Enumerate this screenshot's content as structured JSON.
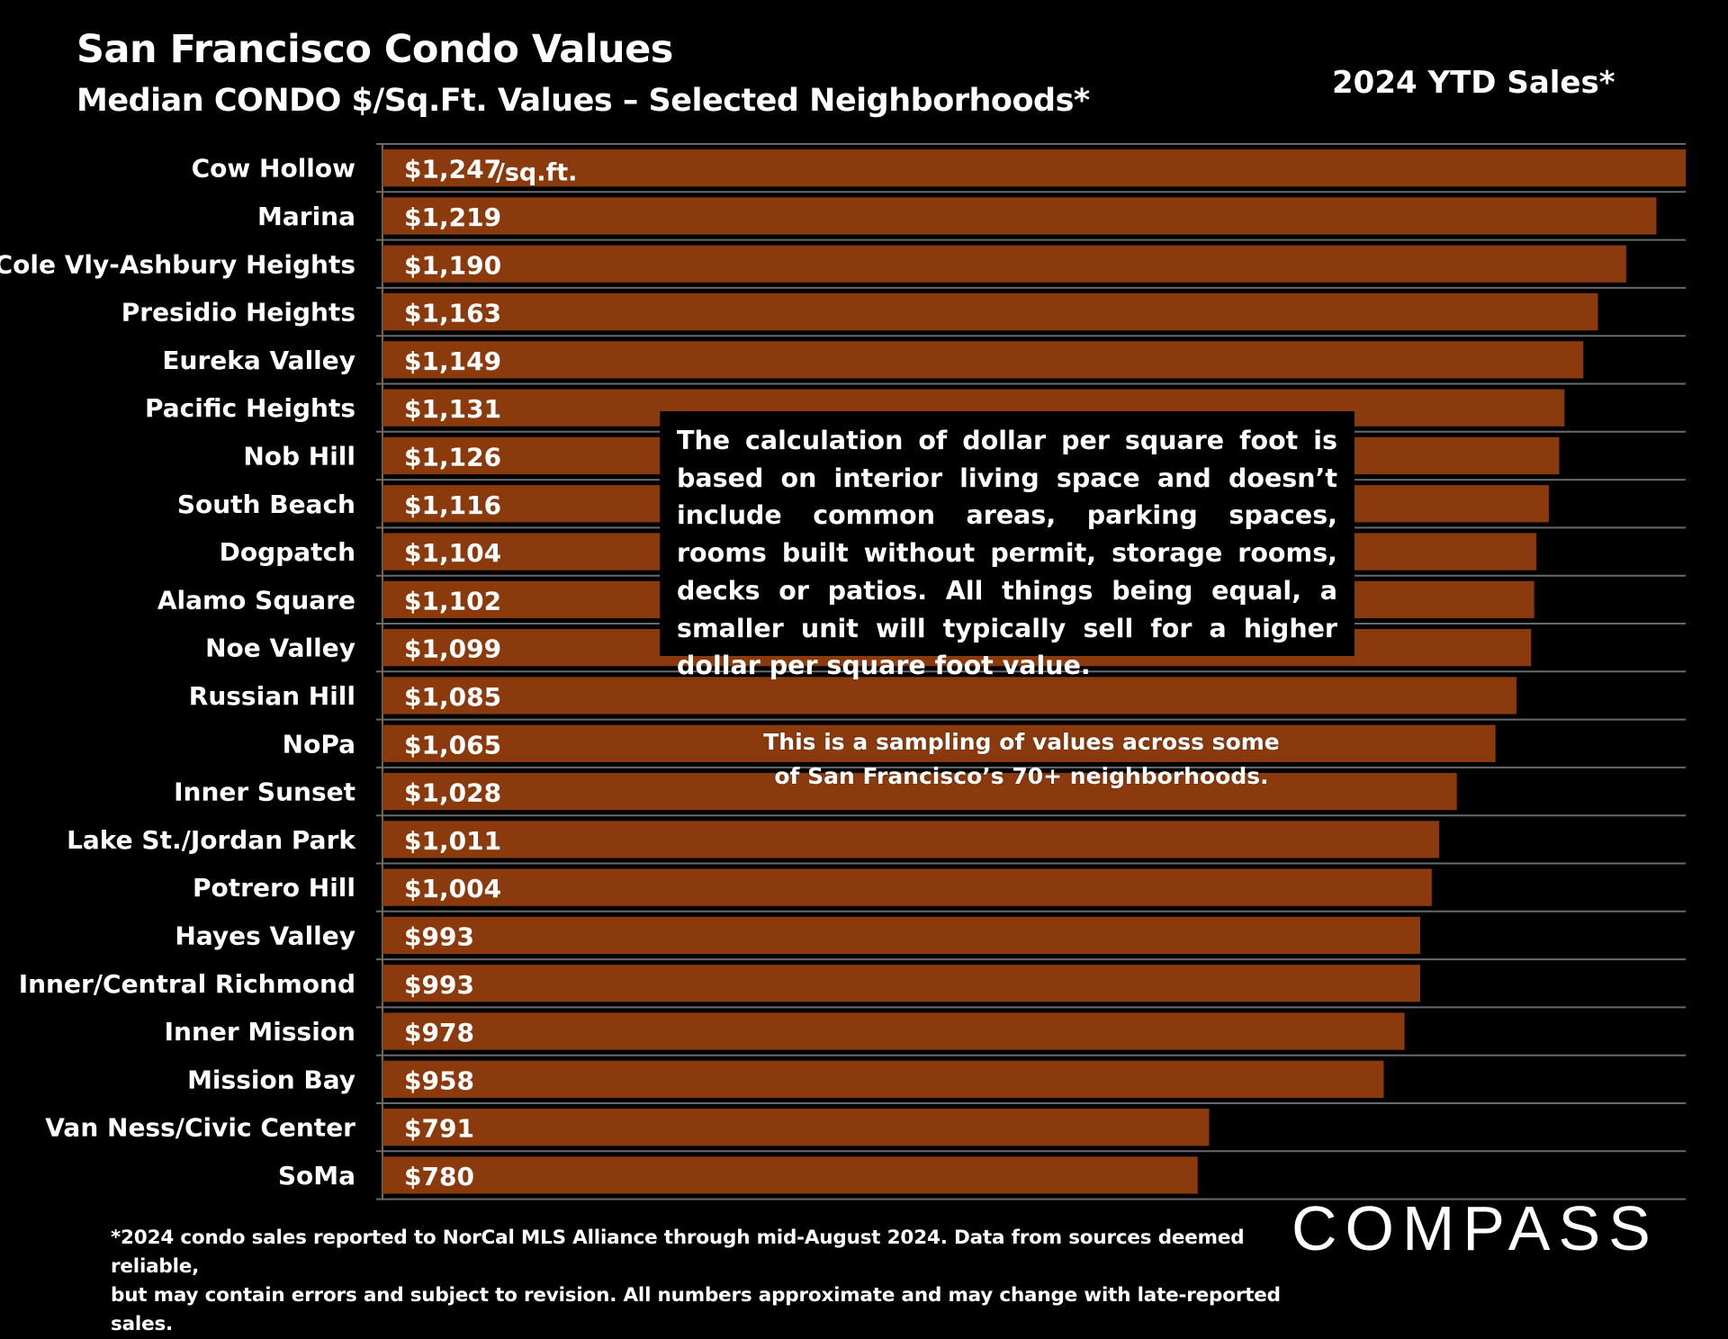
{
  "header": {
    "title": "San Francisco Condo Values",
    "subtitle": "Median CONDO $/Sq.Ft. Values – Selected Neighborhoods*",
    "period_label": "2024 YTD Sales*"
  },
  "colors": {
    "bar": "#8B3A0E",
    "gridline": "#6a6a6a",
    "background": "#000000",
    "text": "#ffffff"
  },
  "chart_data": {
    "type": "bar",
    "orientation": "horizontal",
    "title": "Median CONDO $/Sq.Ft. Values – Selected Neighborhoods*",
    "xlabel": "",
    "ylabel": "",
    "unit_suffix": "/sq.ft.",
    "xlim": [
      0,
      1247
    ],
    "categories": [
      "Cow Hollow",
      "Marina",
      "Cole Vly-Ashbury Heights",
      "Presidio Heights",
      "Eureka Valley",
      "Pacific Heights",
      "Nob Hill",
      "South Beach",
      "Dogpatch",
      "Alamo Square",
      "Noe Valley",
      "Russian Hill",
      "NoPa",
      "Inner Sunset",
      "Lake St./Jordan Park",
      "Potrero Hill",
      "Hayes Valley",
      "Inner/Central Richmond",
      "Inner Mission",
      "Mission Bay",
      "Van Ness/Civic Center",
      "SoMa"
    ],
    "values": [
      1247,
      1219,
      1190,
      1163,
      1149,
      1131,
      1126,
      1116,
      1104,
      1102,
      1099,
      1085,
      1065,
      1028,
      1011,
      1004,
      993,
      993,
      978,
      958,
      791,
      780
    ],
    "value_labels": [
      "$1,247",
      "$1,219",
      "$1,190",
      "$1,163",
      "$1,149",
      "$1,131",
      "$1,126",
      "$1,116",
      "$1,104",
      "$1,102",
      "$1,099",
      "$1,085",
      "$1,065",
      "$1,028",
      "$1,011",
      "$1,004",
      "$993",
      "$993",
      "$978",
      "$958",
      "$791",
      "$780"
    ]
  },
  "notes": {
    "calculation_note": "The calculation of dollar per square foot is based on interior living space and doesn’t include common areas, parking spaces, rooms built without permit, storage rooms, decks or patios. All things being equal, a smaller unit will typically sell for a higher dollar per square foot value.",
    "sampling_note": "This is a sampling of values across some\nof San Francisco’s 70+ neighborhoods.",
    "footnote": "*2024 condo sales reported to NorCal MLS Alliance through mid-August 2024. Data from sources deemed reliable,\nbut may contain errors and subject to revision. All numbers approximate and may change with late-reported sales."
  },
  "brand": {
    "name": "COMPASS"
  }
}
